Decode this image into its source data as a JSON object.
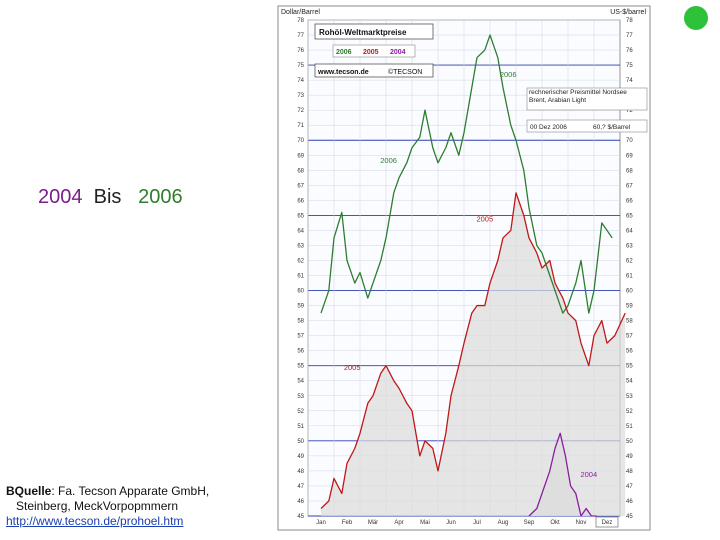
{
  "slide": {
    "title_2004": "2004",
    "title_bis": "Bis",
    "title_2006": "2006",
    "source_label": "BQuelle",
    "source_text": ": Fa. Tecson Apparate GmbH,",
    "source_line2": "Steinberg, MeckVorpopmmern",
    "source_link": "http://www.tecson.de/prohoel.htm"
  },
  "chart_data": {
    "type": "line",
    "title": "Rohöl-Weltmarktpreise",
    "legend": [
      "2006",
      "2005",
      "2004"
    ],
    "url": "www.tecson.de",
    "brand": "©TECSON",
    "ylabel_left": "Dollar/Barrel",
    "ylabel_right": "US-$/barrel",
    "info_box": "rechnerischer Preismittel Nordsee Brent, Arabian Light",
    "stand": "00 Dez 2006",
    "stand_value": "60,? $/Barrel",
    "ylim": [
      45,
      78
    ],
    "yticks": [
      45,
      46,
      47,
      48,
      49,
      50,
      51,
      52,
      53,
      54,
      55,
      56,
      57,
      58,
      59,
      60,
      61,
      62,
      63,
      64,
      65,
      66,
      67,
      68,
      69,
      70,
      71,
      72,
      73,
      74,
      75,
      76,
      77,
      78
    ],
    "categories": [
      "Jan",
      "Feb",
      "Mär",
      "Apr",
      "Mai",
      "Jun",
      "Jul",
      "Aug",
      "Sep",
      "Okt",
      "Nov",
      "Dez"
    ],
    "series": [
      {
        "name": "2006",
        "color": "#2e7d2e",
        "x": [
          0.0,
          0.3,
          0.5,
          0.8,
          1.0,
          1.3,
          1.5,
          1.8,
          2.0,
          2.3,
          2.5,
          2.8,
          3.0,
          3.3,
          3.5,
          3.8,
          4.0,
          4.3,
          4.5,
          4.8,
          5.0,
          5.3,
          5.5,
          5.8,
          6.0,
          6.3,
          6.5,
          6.8,
          7.0,
          7.3,
          7.5,
          7.8,
          8.0,
          8.3,
          8.5,
          8.8,
          9.0,
          9.3,
          9.5,
          9.8,
          10.0,
          10.3,
          10.5,
          10.8,
          11.0,
          11.2
        ],
        "y": [
          58.5,
          60.0,
          63.5,
          65.2,
          62.0,
          60.5,
          61.2,
          59.5,
          60.5,
          62.0,
          63.5,
          66.5,
          67.5,
          68.5,
          69.5,
          70.2,
          72.0,
          69.5,
          68.5,
          69.5,
          70.5,
          69.0,
          70.5,
          73.5,
          75.5,
          76.0,
          77.0,
          75.5,
          73.5,
          71.0,
          70.0,
          68.0,
          65.5,
          63.0,
          62.5,
          61.0,
          60.0,
          58.5,
          59.0,
          60.5,
          62.0,
          58.5,
          60.0,
          64.5,
          64.0,
          63.5
        ]
      },
      {
        "name": "2005",
        "color": "#c01818",
        "x": [
          0.0,
          0.3,
          0.5,
          0.8,
          1.0,
          1.3,
          1.5,
          1.8,
          2.0,
          2.3,
          2.5,
          2.8,
          3.0,
          3.3,
          3.5,
          3.8,
          4.0,
          4.3,
          4.5,
          4.8,
          5.0,
          5.3,
          5.5,
          5.8,
          6.0,
          6.3,
          6.5,
          6.8,
          7.0,
          7.3,
          7.5,
          7.8,
          8.0,
          8.3,
          8.5,
          8.8,
          9.0,
          9.3,
          9.5,
          9.8,
          10.0,
          10.3,
          10.5,
          10.8,
          11.0,
          11.3,
          11.7
        ],
        "y": [
          45.5,
          46.0,
          47.5,
          46.5,
          48.5,
          49.5,
          50.5,
          52.5,
          53.0,
          54.5,
          55.0,
          54.0,
          53.5,
          52.5,
          52.0,
          49.0,
          50.0,
          49.5,
          48.0,
          50.5,
          53.0,
          55.0,
          56.5,
          58.5,
          59.0,
          59.0,
          60.5,
          62.0,
          63.5,
          64.0,
          66.5,
          65.0,
          63.5,
          62.5,
          61.5,
          62.0,
          60.5,
          59.5,
          58.5,
          58.0,
          56.5,
          55.0,
          57.0,
          58.0,
          56.5,
          57.0,
          58.5
        ]
      },
      {
        "name": "2004",
        "color": "#8a1e9e",
        "x": [
          8.0,
          8.3,
          8.5,
          8.8,
          9.0,
          9.2,
          9.4,
          9.6,
          9.8,
          10.0,
          10.2,
          10.4,
          10.6
        ],
        "y": [
          45.0,
          45.5,
          46.5,
          48.0,
          49.5,
          50.5,
          49.0,
          47.0,
          46.5,
          45.0,
          45.5,
          45.0,
          45.0
        ]
      }
    ],
    "annotations": [
      {
        "text": "2006",
        "series": "2006"
      },
      {
        "text": "2006",
        "series": "2006"
      },
      {
        "text": "2005",
        "series": "2005"
      },
      {
        "text": "2005",
        "series": "2005"
      },
      {
        "text": "2004",
        "series": "2004"
      }
    ],
    "grid": true
  }
}
